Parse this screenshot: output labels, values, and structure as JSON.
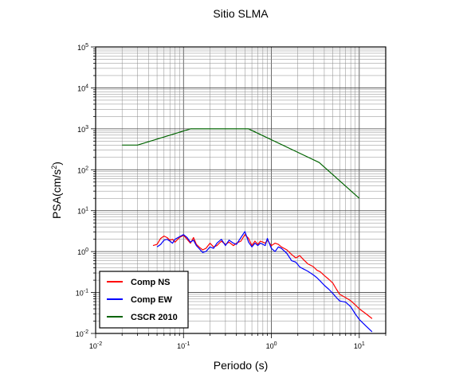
{
  "chart_data": {
    "type": "line",
    "title": "Sitio SLMA",
    "xlabel": "Periodo (s)",
    "ylabel": "PSA(cm/s²)",
    "x_scale": "log",
    "y_scale": "log",
    "xlim": [
      0.01,
      20
    ],
    "ylim": [
      0.01,
      100000
    ],
    "grid": true,
    "legend_position": "bottom-left",
    "x_major_ticks": [
      0.01,
      0.1,
      1,
      10
    ],
    "y_major_ticks": [
      0.01,
      0.1,
      1,
      10,
      100,
      1000,
      10000,
      100000
    ],
    "x_tick_labels": [
      {
        "base": "10",
        "exp": "-2"
      },
      {
        "base": "10",
        "exp": "-1"
      },
      {
        "base": "10",
        "exp": "0"
      },
      {
        "base": "10",
        "exp": "1"
      }
    ],
    "y_tick_labels": [
      {
        "base": "10",
        "exp": "-2"
      },
      {
        "base": "10",
        "exp": "-1"
      },
      {
        "base": "10",
        "exp": "0"
      },
      {
        "base": "10",
        "exp": "1"
      },
      {
        "base": "10",
        "exp": "2"
      },
      {
        "base": "10",
        "exp": "3"
      },
      {
        "base": "10",
        "exp": "4"
      },
      {
        "base": "10",
        "exp": "5"
      }
    ],
    "series": [
      {
        "name": "Comp NS",
        "color": "#ff0000",
        "x": [
          0.045,
          0.05,
          0.055,
          0.06,
          0.065,
          0.07,
          0.075,
          0.08,
          0.09,
          0.1,
          0.11,
          0.12,
          0.13,
          0.14,
          0.15,
          0.165,
          0.18,
          0.2,
          0.22,
          0.24,
          0.27,
          0.3,
          0.33,
          0.37,
          0.4,
          0.45,
          0.5,
          0.55,
          0.6,
          0.65,
          0.7,
          0.75,
          0.8,
          0.85,
          0.9,
          1.0,
          1.1,
          1.2,
          1.3,
          1.5,
          1.7,
          1.9,
          2.1,
          2.3,
          2.6,
          3.0,
          3.3,
          3.6,
          4.0,
          4.5,
          5.0,
          5.5,
          6.0,
          7.0,
          8.0,
          9.0,
          10.0,
          12.0,
          14.0
        ],
        "y": [
          1.4,
          1.5,
          2.1,
          2.4,
          2.2,
          1.9,
          2.0,
          1.7,
          2.2,
          2.5,
          2.0,
          1.6,
          2.2,
          1.5,
          1.3,
          1.1,
          1.2,
          1.6,
          1.3,
          1.4,
          1.8,
          1.5,
          1.7,
          1.4,
          1.6,
          1.8,
          2.6,
          2.1,
          1.4,
          1.8,
          1.5,
          1.8,
          1.7,
          1.6,
          1.9,
          1.4,
          1.6,
          1.5,
          1.3,
          1.1,
          0.85,
          0.7,
          0.8,
          0.65,
          0.5,
          0.43,
          0.35,
          0.32,
          0.26,
          0.21,
          0.17,
          0.12,
          0.09,
          0.075,
          0.063,
          0.05,
          0.04,
          0.03,
          0.023
        ]
      },
      {
        "name": "Comp EW",
        "color": "#0000ff",
        "x": [
          0.05,
          0.055,
          0.06,
          0.065,
          0.07,
          0.075,
          0.08,
          0.09,
          0.1,
          0.11,
          0.12,
          0.13,
          0.14,
          0.15,
          0.165,
          0.18,
          0.2,
          0.22,
          0.24,
          0.27,
          0.3,
          0.33,
          0.37,
          0.4,
          0.45,
          0.5,
          0.55,
          0.6,
          0.65,
          0.7,
          0.75,
          0.8,
          0.85,
          0.9,
          1.0,
          1.1,
          1.2,
          1.3,
          1.5,
          1.7,
          1.9,
          2.1,
          2.3,
          2.6,
          3.0,
          3.3,
          3.6,
          4.0,
          4.5,
          5.0,
          5.5,
          6.0,
          7.0,
          8.0,
          9.0,
          10.0,
          12.0,
          14.0
        ],
        "y": [
          1.3,
          1.5,
          1.9,
          2.0,
          1.8,
          1.6,
          2.0,
          2.3,
          2.6,
          2.2,
          1.7,
          1.9,
          1.4,
          1.2,
          0.95,
          1.0,
          1.3,
          1.2,
          1.6,
          2.0,
          1.4,
          1.9,
          1.6,
          1.5,
          2.2,
          3.1,
          1.7,
          1.3,
          1.6,
          1.4,
          1.6,
          1.5,
          1.4,
          2.1,
          1.2,
          1.0,
          1.3,
          1.2,
          0.9,
          0.6,
          0.55,
          0.42,
          0.38,
          0.33,
          0.27,
          0.23,
          0.19,
          0.15,
          0.12,
          0.095,
          0.075,
          0.062,
          0.058,
          0.045,
          0.03,
          0.022,
          0.015,
          0.011
        ]
      },
      {
        "name": "CSCR 2010",
        "color": "#006400",
        "x": [
          0.02,
          0.03,
          0.12,
          0.55,
          3.5,
          10.0
        ],
        "y": [
          400,
          400,
          1000,
          1000,
          150,
          20
        ]
      }
    ]
  }
}
